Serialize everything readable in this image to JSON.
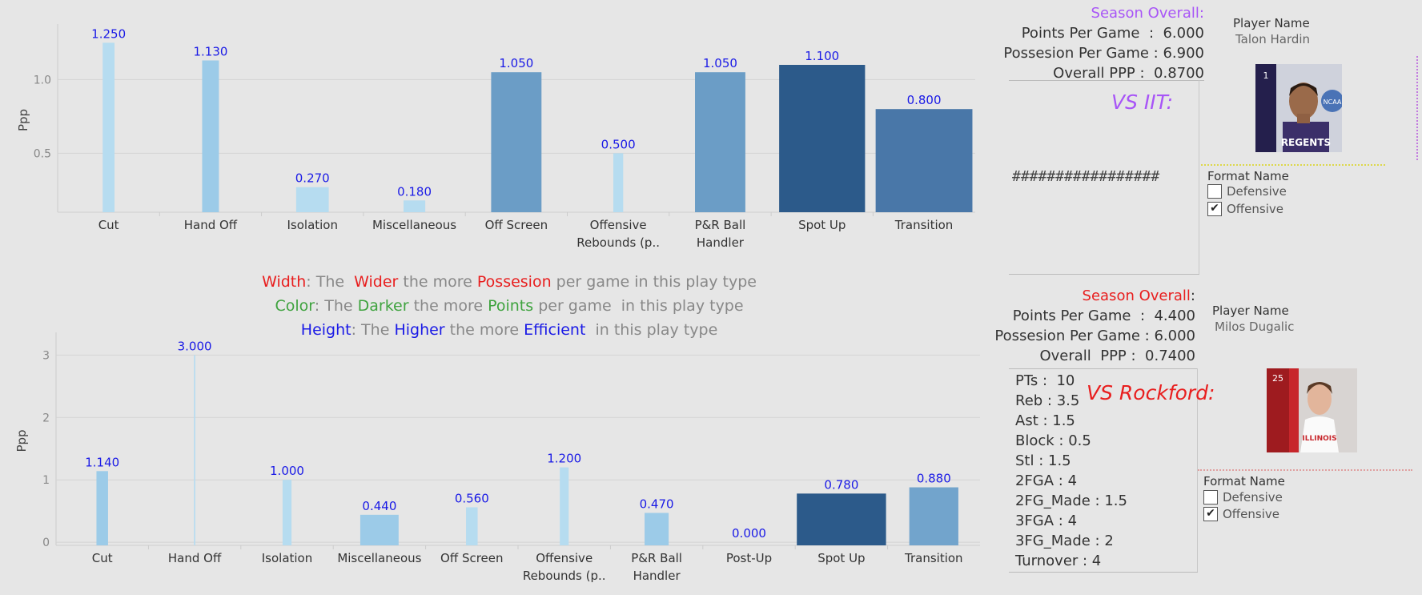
{
  "chart_data": [
    {
      "type": "bar",
      "ylabel": "Ppp",
      "ylim": [
        0.1,
        1.35
      ],
      "yticks": [
        0.5,
        1.0
      ],
      "categories": [
        "Cut",
        "Hand Off",
        "Isolation",
        "Miscellaneous",
        "Off Screen",
        "Offensive Rebounds (p..",
        "P&R Ball Handler",
        "Spot Up",
        "Transition"
      ],
      "category_lines": [
        [
          "Cut"
        ],
        [
          "Hand Off"
        ],
        [
          "Isolation"
        ],
        [
          "Miscellaneous"
        ],
        [
          "Off Screen"
        ],
        [
          "Offensive",
          "Rebounds (p.."
        ],
        [
          "P&R Ball",
          "Handler"
        ],
        [
          "Spot Up"
        ],
        [
          "Transition"
        ]
      ],
      "values": [
        1.25,
        1.13,
        0.27,
        0.18,
        1.05,
        0.5,
        1.05,
        1.1,
        0.8
      ],
      "data_labels": [
        "1.250",
        "1.130",
        "0.270",
        "0.180",
        "1.050",
        "0.500",
        "1.050",
        "1.100",
        "0.800"
      ],
      "bar_width_share": [
        0.12,
        0.17,
        0.33,
        0.22,
        0.51,
        0.1,
        0.51,
        0.87,
        0.98
      ],
      "bar_colors": [
        "#b6dcf0",
        "#9ccbe8",
        "#b6dcf0",
        "#b6dcf0",
        "#6b9dc6",
        "#b6dcf0",
        "#6b9dc6",
        "#2c5a8a",
        "#4977a8"
      ],
      "grid": true
    },
    {
      "type": "bar",
      "ylabel": "Ppp",
      "ylim": [
        -0.05,
        3.3
      ],
      "yticks": [
        0,
        1,
        2,
        3
      ],
      "categories": [
        "Cut",
        "Hand Off",
        "Isolation",
        "Miscellaneous",
        "Off Screen",
        "Offensive Rebounds (p..",
        "P&R Ball Handler",
        "Post-Up",
        "Spot Up",
        "Transition"
      ],
      "category_lines": [
        [
          "Cut"
        ],
        [
          "Hand Off"
        ],
        [
          "Isolation"
        ],
        [
          "Miscellaneous"
        ],
        [
          "Off Screen"
        ],
        [
          "Offensive",
          "Rebounds (p.."
        ],
        [
          "P&R Ball",
          "Handler"
        ],
        [
          "Post-Up"
        ],
        [
          "Spot Up"
        ],
        [
          "Transition"
        ]
      ],
      "values": [
        1.14,
        3.0,
        1.0,
        0.44,
        0.56,
        1.2,
        0.47,
        0.0,
        0.78,
        0.88
      ],
      "data_labels": [
        "1.140",
        "3.000",
        "1.000",
        "0.440",
        "0.560",
        "1.200",
        "0.470",
        "0.000",
        "0.780",
        "0.880"
      ],
      "bar_width_share": [
        0.13,
        0.015,
        0.1,
        0.43,
        0.13,
        0.1,
        0.27,
        0.0,
        1.0,
        0.55
      ],
      "bar_colors": [
        "#9ccbe8",
        "#b6dcf0",
        "#b6dcf0",
        "#9ccbe8",
        "#b6dcf0",
        "#b6dcf0",
        "#9ccbe8",
        "#b6dcf0",
        "#2c5a8a",
        "#72a4cc"
      ],
      "grid": true
    }
  ],
  "legend": {
    "width": {
      "key": "Width",
      "text1": ": The  ",
      "word1": "Wider",
      "text2": " the more ",
      "word2": "Possesion",
      "text3": " per game in this play type",
      "color": "#e81e1e"
    },
    "color": {
      "key": "Color",
      "text1": ": The ",
      "word1": "Darker",
      "text2": " the more ",
      "word2": "Points",
      "text3": " per game  in this play type",
      "color": "#3fa33f"
    },
    "height": {
      "key": "Height",
      "text1": ": The ",
      "word1": "Higher",
      "text2": " the more ",
      "word2": "Efficient",
      "text3": "  in this play type",
      "color": "#1a1ae6"
    }
  },
  "player1": {
    "season_title": "Season Overall:",
    "season_color": "#a855f7",
    "ppg": "Points Per Game  :  6.000",
    "possg": "Possesion Per Game : 6.900",
    "ppp": "Overall PPP :  0.8700",
    "vs": "VS  IIT:",
    "hash": "#################",
    "name_label": "Player Name",
    "name": "Talon Hardin",
    "jersey": "1",
    "shirt_text": "REGENTS",
    "badge_text": "NCAA",
    "format_title": "Format Name",
    "formats": [
      "Defensive",
      "Offensive"
    ],
    "format_checked": [
      false,
      true
    ]
  },
  "player2": {
    "season_title": "Season Overall",
    "season_color": "#e81e1e",
    "ppg": "Points Per Game  :  4.400",
    "possg": "Possesion Per Game : 6.000",
    "ppp": "Overall  PPP :  0.7400",
    "vs": "VS Rockford:",
    "stats": [
      "PTs :  10",
      "Reb : 3.5",
      "Ast : 1.5",
      "Block : 0.5",
      "Stl : 1.5",
      "2FGA : 4",
      "2FG_Made : 1.5",
      "3FGA : 4",
      "3FG_Made : 2",
      "Turnover : 4"
    ],
    "name_label": "Player Name",
    "name": "Milos Dugalic",
    "jersey": "25",
    "shirt_text": "ILLINOIS",
    "format_title": "Format Name",
    "formats": [
      "Defensive",
      "Offensive"
    ],
    "format_checked": [
      false,
      true
    ]
  }
}
